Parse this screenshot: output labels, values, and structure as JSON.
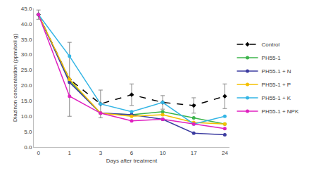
{
  "chart_data": {
    "type": "line",
    "x_label": "Days after treatment",
    "y_label": "Diazinon concentration (ppm/soil g)",
    "categories": [
      "0",
      "1",
      "3",
      "6",
      "10",
      "17",
      "24"
    ],
    "ylim": [
      0,
      45
    ],
    "yticks": [
      {
        "value": 0,
        "label": "0.0"
      },
      {
        "value": 5,
        "label": "5.0"
      },
      {
        "value": 10,
        "label": "10.0"
      },
      {
        "value": 15,
        "label": "15.0"
      },
      {
        "value": 20,
        "label": "20.0"
      },
      {
        "value": 25,
        "label": "25.0"
      },
      {
        "value": 30,
        "label": "30.0"
      },
      {
        "value": 35,
        "label": "35.0"
      },
      {
        "value": 40,
        "label": "40.0"
      },
      {
        "value": 45,
        "label": "45.0"
      }
    ],
    "grid": false,
    "legend": "right",
    "series": [
      {
        "name": "Control",
        "color": "#000000",
        "marker": "diamond",
        "line_style": "dash",
        "values": [
          43,
          22,
          14,
          17,
          14.5,
          13.5,
          16.5
        ],
        "errors": [
          1.5,
          12,
          4.5,
          3.5,
          2.2,
          2.5,
          4
        ]
      },
      {
        "name": "PH55-1",
        "color": "#3cb44b",
        "marker": "circle",
        "line_style": "solid",
        "values": [
          43,
          21.5,
          11,
          10.5,
          11.5,
          9.5,
          7.5
        ]
      },
      {
        "name": "PH55-1 + N",
        "color": "#3c3ca0",
        "marker": "circle",
        "line_style": "solid",
        "values": [
          43,
          21,
          11,
          10.5,
          9,
          4.5,
          4
        ]
      },
      {
        "name": "PH55-1 + P",
        "color": "#f5c000",
        "marker": "circle",
        "line_style": "solid",
        "values": [
          43,
          22,
          11,
          10,
          10.5,
          8,
          7.5
        ]
      },
      {
        "name": "PH55-1 + K",
        "color": "#33b5e5",
        "marker": "circle",
        "line_style": "solid",
        "values": [
          43,
          29.5,
          14,
          11.5,
          14.5,
          7.5,
          10
        ]
      },
      {
        "name": "PH55-1 + NPK",
        "color": "#e020c0",
        "marker": "circle",
        "line_style": "solid",
        "values": [
          43,
          16.5,
          11,
          8.5,
          9,
          7.5,
          6
        ]
      }
    ]
  }
}
